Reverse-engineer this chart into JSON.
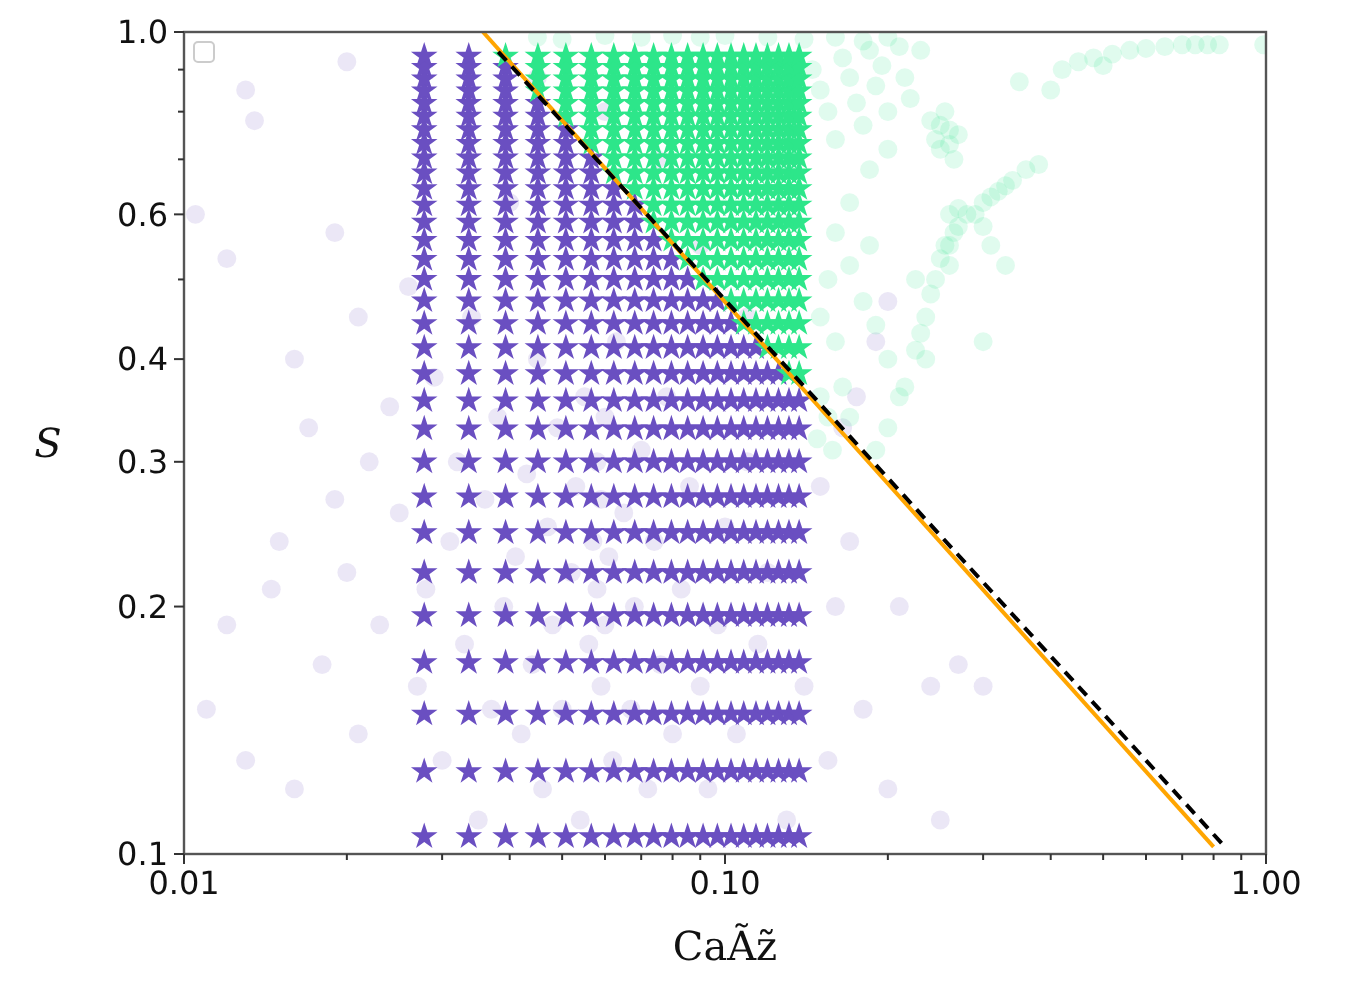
{
  "chart_data": {
    "type": "scatter",
    "xlabel": "CaÃz̃",
    "ylabel": "S",
    "log": "xy",
    "grid": false,
    "xlim": [
      0.01,
      1
    ],
    "ylim": [
      0.1,
      1
    ],
    "xticks": [
      {
        "value": 0.01,
        "label": "0.01"
      },
      {
        "value": 0.02,
        "label": null
      },
      {
        "value": 0.03,
        "label": null
      },
      {
        "value": 0.04,
        "label": null
      },
      {
        "value": 0.05,
        "label": null
      },
      {
        "value": 0.06,
        "label": null
      },
      {
        "value": 0.07,
        "label": null
      },
      {
        "value": 0.08,
        "label": null
      },
      {
        "value": 0.09,
        "label": null
      },
      {
        "value": 0.1,
        "label": "0.10"
      },
      {
        "value": 0.2,
        "label": null
      },
      {
        "value": 0.3,
        "label": null
      },
      {
        "value": 0.4,
        "label": null
      },
      {
        "value": 0.5,
        "label": null
      },
      {
        "value": 0.6,
        "label": null
      },
      {
        "value": 0.7,
        "label": null
      },
      {
        "value": 0.8,
        "label": null
      },
      {
        "value": 0.9,
        "label": null
      },
      {
        "value": 1,
        "label": "1.00"
      }
    ],
    "yticks": [
      {
        "value": 0.1,
        "label": "0.1"
      },
      0.2,
      0.3,
      0.4,
      {
        "value": 0.5,
        "label": null
      },
      0.6,
      {
        "value": 0.7,
        "label": null
      },
      {
        "value": 0.8,
        "label": null
      },
      {
        "value": 0.9,
        "label": null
      },
      {
        "value": 1,
        "label": "1.0"
      }
    ],
    "series": [
      {
        "marker": "circle",
        "color": "#7b5cc4",
        "x": [
          0.0105,
          0.012,
          0.013,
          0.0135,
          0.016,
          0.017,
          0.019,
          0.02,
          0.021,
          0.022,
          0.011,
          0.012,
          0.013,
          0.0145,
          0.015,
          0.016,
          0.018,
          0.019,
          0.02,
          0.021,
          0.023,
          0.024,
          0.025,
          0.026,
          0.027,
          0.028,
          0.029,
          0.03,
          0.031,
          0.032,
          0.033,
          0.034,
          0.035,
          0.036,
          0.037,
          0.038,
          0.039,
          0.04,
          0.041,
          0.042,
          0.043,
          0.044,
          0.045,
          0.046,
          0.047,
          0.048,
          0.049,
          0.05,
          0.052,
          0.053,
          0.054,
          0.055,
          0.056,
          0.057,
          0.058,
          0.058,
          0.059,
          0.059,
          0.06,
          0.06,
          0.061,
          0.062,
          0.063,
          0.065,
          0.067,
          0.068,
          0.07,
          0.072,
          0.074,
          0.076,
          0.078,
          0.08,
          0.083,
          0.086,
          0.09,
          0.093,
          0.097,
          0.1,
          0.105,
          0.11,
          0.115,
          0.12,
          0.13,
          0.14,
          0.15,
          0.155,
          0.16,
          0.17,
          0.18,
          0.2,
          0.21,
          0.24,
          0.25,
          0.27,
          0.3,
          0.165,
          0.175,
          0.2,
          0.19,
          0.11,
          0.09,
          0.075,
          0.06,
          0.045
        ],
        "values": [
          0.6,
          0.53,
          0.85,
          0.78,
          0.4,
          0.33,
          0.57,
          0.92,
          0.45,
          0.3,
          0.15,
          0.19,
          0.13,
          0.21,
          0.24,
          0.12,
          0.17,
          0.27,
          0.22,
          0.14,
          0.19,
          0.35,
          0.26,
          0.49,
          0.16,
          0.21,
          0.38,
          0.13,
          0.24,
          0.3,
          0.18,
          0.45,
          0.11,
          0.27,
          0.15,
          0.34,
          0.2,
          0.62,
          0.23,
          0.14,
          0.29,
          0.17,
          0.4,
          0.12,
          0.25,
          0.19,
          0.33,
          0.15,
          0.22,
          0.28,
          0.11,
          0.36,
          0.18,
          0.24,
          0.3,
          0.21,
          0.27,
          0.16,
          0.19,
          0.34,
          0.23,
          0.13,
          0.42,
          0.26,
          0.15,
          0.2,
          0.31,
          0.12,
          0.24,
          0.17,
          0.36,
          0.14,
          0.21,
          0.28,
          0.16,
          0.12,
          0.19,
          0.25,
          0.14,
          0.3,
          0.18,
          0.22,
          0.11,
          0.16,
          0.28,
          0.13,
          0.2,
          0.24,
          0.15,
          0.12,
          0.2,
          0.16,
          0.11,
          0.17,
          0.16,
          0.33,
          0.36,
          0.47,
          0.42,
          0.45,
          0.55,
          0.7,
          0.8,
          0.88
        ]
      },
      {
        "marker": "circle",
        "color": "#2de68a",
        "x": [
          0.045,
          0.05,
          0.06,
          0.07,
          0.08,
          0.09,
          0.1,
          0.12,
          0.14,
          0.16,
          0.18,
          0.2,
          0.145,
          0.15,
          0.155,
          0.16,
          0.165,
          0.17,
          0.175,
          0.18,
          0.185,
          0.19,
          0.195,
          0.2,
          0.21,
          0.215,
          0.22,
          0.2,
          0.185,
          0.17,
          0.16,
          0.155,
          0.15,
          0.16,
          0.17,
          0.18,
          0.185,
          0.19,
          0.2,
          0.165,
          0.155,
          0.15,
          0.148,
          0.158,
          0.17,
          0.215,
          0.225,
          0.23,
          0.24,
          0.245,
          0.25,
          0.255,
          0.26,
          0.265,
          0.25,
          0.26,
          0.27,
          0.225,
          0.23,
          0.235,
          0.24,
          0.245,
          0.25,
          0.255,
          0.26,
          0.265,
          0.27,
          0.28,
          0.29,
          0.3,
          0.31,
          0.32,
          0.33,
          0.34,
          0.36,
          0.38,
          0.235,
          0.26,
          0.27,
          0.3,
          0.31,
          0.21,
          0.2,
          0.19,
          0.3,
          0.33,
          0.26,
          0.42,
          0.45,
          0.48,
          0.52,
          0.56,
          0.6,
          0.65,
          0.7,
          0.74,
          0.78,
          0.82,
          0.99,
          0.4,
          0.5,
          0.35
        ],
        "values": [
          0.985,
          0.98,
          0.99,
          0.985,
          0.99,
          0.985,
          0.99,
          0.985,
          0.98,
          0.985,
          0.975,
          0.985,
          0.9,
          0.85,
          0.8,
          0.74,
          0.93,
          0.88,
          0.82,
          0.77,
          0.95,
          0.86,
          0.91,
          0.8,
          0.96,
          0.88,
          0.83,
          0.72,
          0.68,
          0.62,
          0.57,
          0.5,
          0.45,
          0.42,
          0.52,
          0.47,
          0.55,
          0.44,
          0.4,
          0.37,
          0.34,
          0.36,
          0.32,
          0.31,
          0.34,
          0.37,
          0.5,
          0.95,
          0.78,
          0.74,
          0.72,
          0.8,
          0.76,
          0.7,
          0.77,
          0.73,
          0.75,
          0.41,
          0.43,
          0.45,
          0.48,
          0.5,
          0.53,
          0.55,
          0.52,
          0.57,
          0.58,
          0.6,
          0.6,
          0.62,
          0.63,
          0.64,
          0.65,
          0.66,
          0.68,
          0.69,
          0.4,
          0.55,
          0.61,
          0.58,
          0.55,
          0.36,
          0.33,
          0.31,
          0.42,
          0.52,
          0.6,
          0.9,
          0.92,
          0.93,
          0.94,
          0.95,
          0.955,
          0.96,
          0.965,
          0.965,
          0.965,
          0.965,
          0.965,
          0.85,
          0.91,
          0.87
        ]
      },
      {
        "marker": "star",
        "color": "#6a4fc1",
        "x": [
          0.0278,
          0.0278,
          0.0278,
          0.0278,
          0.0278,
          0.0278,
          0.0278,
          0.0278,
          0.0278,
          0.0278,
          0.0278,
          0.0278,
          0.0278,
          0.0278,
          0.0278,
          0.0278,
          0.0278,
          0.0278,
          0.0278,
          0.0278,
          0.0278,
          0.0278,
          0.0278,
          0.0278,
          0.0278,
          0.0278,
          0.0278,
          0.0278,
          0.0278,
          0.0278,
          0.0278,
          0.0336,
          0.0336,
          0.0336,
          0.0336,
          0.0336,
          0.0336,
          0.0336,
          0.0336,
          0.0336,
          0.0336,
          0.0336,
          0.0336,
          0.0336,
          0.0336,
          0.0336,
          0.0336,
          0.0336,
          0.0336,
          0.0336,
          0.0336,
          0.0336,
          0.0336,
          0.0336,
          0.0336,
          0.0336,
          0.0336,
          0.0336,
          0.0336,
          0.0336,
          0.0336,
          0.0336,
          0.0393,
          0.0393,
          0.0393,
          0.0393,
          0.0393,
          0.0393,
          0.0393,
          0.0393,
          0.0393,
          0.0393,
          0.0393,
          0.0393,
          0.0393,
          0.0393,
          0.0393,
          0.0393,
          0.0393,
          0.0393,
          0.0393,
          0.0393,
          0.0393,
          0.0393,
          0.0393,
          0.0393,
          0.0393,
          0.0393,
          0.0393,
          0.0393,
          0.0393,
          0.0393,
          0.0451,
          0.0451,
          0.0451,
          0.0451,
          0.0451,
          0.0451,
          0.0451,
          0.0451,
          0.0451,
          0.0451,
          0.0451,
          0.0451,
          0.0451,
          0.0451,
          0.0451,
          0.0451,
          0.0451,
          0.0451,
          0.0451,
          0.0451,
          0.0451,
          0.0451,
          0.0451,
          0.0451,
          0.0451,
          0.0451,
          0.0451,
          0.0508,
          0.0508,
          0.0508,
          0.0508,
          0.0508,
          0.0508,
          0.0508,
          0.0508,
          0.0508,
          0.0508,
          0.0508,
          0.0508,
          0.0508,
          0.0508,
          0.0508,
          0.0508,
          0.0508,
          0.0508,
          0.0508,
          0.0508,
          0.0508,
          0.0508,
          0.0508,
          0.0508,
          0.0508,
          0.0566,
          0.0566,
          0.0566,
          0.0566,
          0.0566,
          0.0566,
          0.0566,
          0.0566,
          0.0566,
          0.0566,
          0.0566,
          0.0566,
          0.0566,
          0.0566,
          0.0566,
          0.0566,
          0.0566,
          0.0566,
          0.0566,
          0.0566,
          0.0566,
          0.0566,
          0.0566,
          0.0623,
          0.0623,
          0.0623,
          0.0623,
          0.0623,
          0.0623,
          0.0623,
          0.0623,
          0.0623,
          0.0623,
          0.0623,
          0.0623,
          0.0623,
          0.0623,
          0.0623,
          0.0623,
          0.0623,
          0.0623,
          0.0623,
          0.0623,
          0.0623,
          0.0681,
          0.0681,
          0.0681,
          0.0681,
          0.0681,
          0.0681,
          0.0681,
          0.0681,
          0.0681,
          0.0681,
          0.0681,
          0.0681,
          0.0681,
          0.0681,
          0.0681,
          0.0681,
          0.0681,
          0.0681,
          0.0681,
          0.0681,
          0.0738,
          0.0738,
          0.0738,
          0.0738,
          0.0738,
          0.0738,
          0.0738,
          0.0738,
          0.0738,
          0.0738,
          0.0738,
          0.0738,
          0.0738,
          0.0738,
          0.0738,
          0.0738,
          0.0738,
          0.0738,
          0.0796,
          0.0796,
          0.0796,
          0.0796,
          0.0796,
          0.0796,
          0.0796,
          0.0796,
          0.0796,
          0.0796,
          0.0796,
          0.0796,
          0.0796,
          0.0796,
          0.0796,
          0.0796,
          0.0796,
          0.0853,
          0.0853,
          0.0853,
          0.0853,
          0.0853,
          0.0853,
          0.0853,
          0.0853,
          0.0853,
          0.0853,
          0.0853,
          0.0853,
          0.0853,
          0.0853,
          0.0853,
          0.0853,
          0.0911,
          0.0911,
          0.0911,
          0.0911,
          0.0911,
          0.0911,
          0.0911,
          0.0911,
          0.0911,
          0.0911,
          0.0911,
          0.0911,
          0.0911,
          0.0911,
          0.0911,
          0.0968,
          0.0968,
          0.0968,
          0.0968,
          0.0968,
          0.0968,
          0.0968,
          0.0968,
          0.0968,
          0.0968,
          0.0968,
          0.0968,
          0.0968,
          0.0968,
          0.0968,
          0.1026,
          0.1026,
          0.1026,
          0.1026,
          0.1026,
          0.1026,
          0.1026,
          0.1026,
          0.1026,
          0.1026,
          0.1026,
          0.1026,
          0.1026,
          0.1026,
          0.1083,
          0.1083,
          0.1083,
          0.1083,
          0.1083,
          0.1083,
          0.1083,
          0.1083,
          0.1083,
          0.1083,
          0.1083,
          0.1083,
          0.1083,
          0.1141,
          0.1141,
          0.1141,
          0.1141,
          0.1141,
          0.1141,
          0.1141,
          0.1141,
          0.1141,
          0.1141,
          0.1141,
          0.1141,
          0.1141,
          0.1198,
          0.1198,
          0.1198,
          0.1198,
          0.1198,
          0.1198,
          0.1198,
          0.1198,
          0.1198,
          0.1198,
          0.1198,
          0.1198,
          0.1256,
          0.1256,
          0.1256,
          0.1256,
          0.1256,
          0.1256,
          0.1256,
          0.1256,
          0.1256,
          0.1256,
          0.1256,
          0.1256,
          0.1313,
          0.1313,
          0.1313,
          0.1313,
          0.1313,
          0.1313,
          0.1313,
          0.1313,
          0.1313,
          0.1313,
          0.1313,
          0.1371,
          0.1371,
          0.1371,
          0.1371,
          0.1371,
          0.1371,
          0.1371,
          0.1371,
          0.1371,
          0.1371,
          0.1371
        ],
        "values": [
          0.105,
          0.126,
          0.148,
          0.171,
          0.195,
          0.22,
          0.246,
          0.272,
          0.3,
          0.329,
          0.356,
          0.384,
          0.413,
          0.442,
          0.471,
          0.5,
          0.529,
          0.558,
          0.587,
          0.616,
          0.645,
          0.674,
          0.703,
          0.732,
          0.761,
          0.79,
          0.819,
          0.848,
          0.877,
          0.906,
          0.935,
          0.105,
          0.126,
          0.148,
          0.171,
          0.195,
          0.22,
          0.246,
          0.272,
          0.3,
          0.329,
          0.356,
          0.384,
          0.413,
          0.442,
          0.471,
          0.5,
          0.529,
          0.558,
          0.587,
          0.616,
          0.645,
          0.674,
          0.703,
          0.732,
          0.761,
          0.79,
          0.819,
          0.848,
          0.877,
          0.906,
          0.935,
          0.105,
          0.126,
          0.148,
          0.171,
          0.195,
          0.22,
          0.246,
          0.272,
          0.3,
          0.329,
          0.356,
          0.384,
          0.413,
          0.442,
          0.471,
          0.5,
          0.529,
          0.558,
          0.587,
          0.616,
          0.645,
          0.674,
          0.703,
          0.732,
          0.761,
          0.79,
          0.819,
          0.848,
          0.877,
          0.906,
          0.105,
          0.126,
          0.148,
          0.171,
          0.195,
          0.22,
          0.246,
          0.272,
          0.3,
          0.329,
          0.356,
          0.384,
          0.413,
          0.442,
          0.471,
          0.5,
          0.529,
          0.558,
          0.587,
          0.616,
          0.645,
          0.674,
          0.703,
          0.732,
          0.761,
          0.79,
          0.819,
          0.105,
          0.126,
          0.148,
          0.171,
          0.195,
          0.22,
          0.246,
          0.272,
          0.3,
          0.329,
          0.356,
          0.384,
          0.413,
          0.442,
          0.471,
          0.5,
          0.529,
          0.558,
          0.587,
          0.616,
          0.645,
          0.674,
          0.703,
          0.732,
          0.761,
          0.105,
          0.126,
          0.148,
          0.171,
          0.195,
          0.22,
          0.246,
          0.272,
          0.3,
          0.329,
          0.356,
          0.384,
          0.413,
          0.442,
          0.471,
          0.5,
          0.529,
          0.558,
          0.587,
          0.616,
          0.645,
          0.674,
          0.703,
          0.105,
          0.126,
          0.148,
          0.171,
          0.195,
          0.22,
          0.246,
          0.272,
          0.3,
          0.329,
          0.356,
          0.384,
          0.413,
          0.442,
          0.471,
          0.5,
          0.529,
          0.558,
          0.587,
          0.616,
          0.645,
          0.105,
          0.126,
          0.148,
          0.171,
          0.195,
          0.22,
          0.246,
          0.272,
          0.3,
          0.329,
          0.356,
          0.384,
          0.413,
          0.442,
          0.471,
          0.5,
          0.529,
          0.558,
          0.587,
          0.616,
          0.105,
          0.126,
          0.148,
          0.171,
          0.195,
          0.22,
          0.246,
          0.272,
          0.3,
          0.329,
          0.356,
          0.384,
          0.413,
          0.442,
          0.471,
          0.5,
          0.529,
          0.558,
          0.105,
          0.126,
          0.148,
          0.171,
          0.195,
          0.22,
          0.246,
          0.272,
          0.3,
          0.329,
          0.356,
          0.384,
          0.413,
          0.442,
          0.471,
          0.5,
          0.529,
          0.105,
          0.126,
          0.148,
          0.171,
          0.195,
          0.22,
          0.246,
          0.272,
          0.3,
          0.329,
          0.356,
          0.384,
          0.413,
          0.442,
          0.471,
          0.5,
          0.105,
          0.126,
          0.148,
          0.171,
          0.195,
          0.22,
          0.246,
          0.272,
          0.3,
          0.329,
          0.356,
          0.384,
          0.413,
          0.442,
          0.471,
          0.105,
          0.126,
          0.148,
          0.171,
          0.195,
          0.22,
          0.246,
          0.272,
          0.3,
          0.329,
          0.356,
          0.384,
          0.413,
          0.442,
          0.471,
          0.105,
          0.126,
          0.148,
          0.171,
          0.195,
          0.22,
          0.246,
          0.272,
          0.3,
          0.329,
          0.356,
          0.384,
          0.413,
          0.442,
          0.105,
          0.126,
          0.148,
          0.171,
          0.195,
          0.22,
          0.246,
          0.272,
          0.3,
          0.329,
          0.356,
          0.384,
          0.413,
          0.105,
          0.126,
          0.148,
          0.171,
          0.195,
          0.22,
          0.246,
          0.272,
          0.3,
          0.329,
          0.356,
          0.384,
          0.413,
          0.105,
          0.126,
          0.148,
          0.171,
          0.195,
          0.22,
          0.246,
          0.272,
          0.3,
          0.329,
          0.356,
          0.384,
          0.105,
          0.126,
          0.148,
          0.171,
          0.195,
          0.22,
          0.246,
          0.272,
          0.3,
          0.329,
          0.356,
          0.384,
          0.105,
          0.126,
          0.148,
          0.171,
          0.195,
          0.22,
          0.246,
          0.272,
          0.3,
          0.329,
          0.356,
          0.105,
          0.126,
          0.148,
          0.171,
          0.195,
          0.22,
          0.246,
          0.272,
          0.3,
          0.329,
          0.356
        ]
      },
      {
        "marker": "star",
        "color": "#2de68a",
        "x": [
          0.0393,
          0.0451,
          0.0451,
          0.0451,
          0.0451,
          0.0508,
          0.0508,
          0.0508,
          0.0508,
          0.0508,
          0.0508,
          0.0566,
          0.0566,
          0.0566,
          0.0566,
          0.0566,
          0.0566,
          0.0566,
          0.0566,
          0.0623,
          0.0623,
          0.0623,
          0.0623,
          0.0623,
          0.0623,
          0.0623,
          0.0623,
          0.0623,
          0.0623,
          0.0681,
          0.0681,
          0.0681,
          0.0681,
          0.0681,
          0.0681,
          0.0681,
          0.0681,
          0.0681,
          0.0681,
          0.0681,
          0.0738,
          0.0738,
          0.0738,
          0.0738,
          0.0738,
          0.0738,
          0.0738,
          0.0738,
          0.0738,
          0.0738,
          0.0738,
          0.0738,
          0.0738,
          0.0796,
          0.0796,
          0.0796,
          0.0796,
          0.0796,
          0.0796,
          0.0796,
          0.0796,
          0.0796,
          0.0796,
          0.0796,
          0.0796,
          0.0796,
          0.0796,
          0.0853,
          0.0853,
          0.0853,
          0.0853,
          0.0853,
          0.0853,
          0.0853,
          0.0853,
          0.0853,
          0.0853,
          0.0853,
          0.0853,
          0.0853,
          0.0853,
          0.0853,
          0.0911,
          0.0911,
          0.0911,
          0.0911,
          0.0911,
          0.0911,
          0.0911,
          0.0911,
          0.0911,
          0.0911,
          0.0911,
          0.0911,
          0.0911,
          0.0911,
          0.0911,
          0.0911,
          0.0968,
          0.0968,
          0.0968,
          0.0968,
          0.0968,
          0.0968,
          0.0968,
          0.0968,
          0.0968,
          0.0968,
          0.0968,
          0.0968,
          0.0968,
          0.0968,
          0.0968,
          0.0968,
          0.1026,
          0.1026,
          0.1026,
          0.1026,
          0.1026,
          0.1026,
          0.1026,
          0.1026,
          0.1026,
          0.1026,
          0.1026,
          0.1026,
          0.1026,
          0.1026,
          0.1026,
          0.1026,
          0.1026,
          0.1083,
          0.1083,
          0.1083,
          0.1083,
          0.1083,
          0.1083,
          0.1083,
          0.1083,
          0.1083,
          0.1083,
          0.1083,
          0.1083,
          0.1083,
          0.1083,
          0.1083,
          0.1083,
          0.1083,
          0.1083,
          0.1141,
          0.1141,
          0.1141,
          0.1141,
          0.1141,
          0.1141,
          0.1141,
          0.1141,
          0.1141,
          0.1141,
          0.1141,
          0.1141,
          0.1141,
          0.1141,
          0.1141,
          0.1141,
          0.1141,
          0.1141,
          0.1198,
          0.1198,
          0.1198,
          0.1198,
          0.1198,
          0.1198,
          0.1198,
          0.1198,
          0.1198,
          0.1198,
          0.1198,
          0.1198,
          0.1198,
          0.1198,
          0.1198,
          0.1198,
          0.1198,
          0.1198,
          0.1198,
          0.1256,
          0.1256,
          0.1256,
          0.1256,
          0.1256,
          0.1256,
          0.1256,
          0.1256,
          0.1256,
          0.1256,
          0.1256,
          0.1256,
          0.1256,
          0.1256,
          0.1256,
          0.1256,
          0.1256,
          0.1256,
          0.1256,
          0.1313,
          0.1313,
          0.1313,
          0.1313,
          0.1313,
          0.1313,
          0.1313,
          0.1313,
          0.1313,
          0.1313,
          0.1313,
          0.1313,
          0.1313,
          0.1313,
          0.1313,
          0.1313,
          0.1313,
          0.1313,
          0.1313,
          0.1313,
          0.1371,
          0.1371,
          0.1371,
          0.1371,
          0.1371,
          0.1371,
          0.1371,
          0.1371,
          0.1371,
          0.1371,
          0.1371,
          0.1371,
          0.1371,
          0.1371,
          0.1371,
          0.1371,
          0.1371,
          0.1371,
          0.1371,
          0.1371
        ],
        "values": [
          0.935,
          0.848,
          0.877,
          0.906,
          0.935,
          0.79,
          0.819,
          0.848,
          0.877,
          0.906,
          0.935,
          0.732,
          0.761,
          0.79,
          0.819,
          0.848,
          0.877,
          0.906,
          0.935,
          0.674,
          0.703,
          0.732,
          0.761,
          0.79,
          0.819,
          0.848,
          0.877,
          0.906,
          0.935,
          0.645,
          0.674,
          0.703,
          0.732,
          0.761,
          0.79,
          0.819,
          0.848,
          0.877,
          0.906,
          0.935,
          0.587,
          0.616,
          0.645,
          0.674,
          0.703,
          0.732,
          0.761,
          0.79,
          0.819,
          0.848,
          0.877,
          0.906,
          0.935,
          0.558,
          0.587,
          0.616,
          0.645,
          0.674,
          0.703,
          0.732,
          0.761,
          0.79,
          0.819,
          0.848,
          0.877,
          0.906,
          0.935,
          0.529,
          0.558,
          0.587,
          0.616,
          0.645,
          0.674,
          0.703,
          0.732,
          0.761,
          0.79,
          0.819,
          0.848,
          0.877,
          0.906,
          0.935,
          0.5,
          0.529,
          0.558,
          0.587,
          0.616,
          0.645,
          0.674,
          0.703,
          0.732,
          0.761,
          0.79,
          0.819,
          0.848,
          0.877,
          0.906,
          0.935,
          0.5,
          0.529,
          0.558,
          0.587,
          0.616,
          0.645,
          0.674,
          0.703,
          0.732,
          0.761,
          0.79,
          0.819,
          0.848,
          0.877,
          0.906,
          0.935,
          0.471,
          0.5,
          0.529,
          0.558,
          0.587,
          0.616,
          0.645,
          0.674,
          0.703,
          0.732,
          0.761,
          0.79,
          0.819,
          0.848,
          0.877,
          0.906,
          0.935,
          0.442,
          0.471,
          0.5,
          0.529,
          0.558,
          0.587,
          0.616,
          0.645,
          0.674,
          0.703,
          0.732,
          0.761,
          0.79,
          0.819,
          0.848,
          0.877,
          0.906,
          0.935,
          0.442,
          0.471,
          0.5,
          0.529,
          0.558,
          0.587,
          0.616,
          0.645,
          0.674,
          0.703,
          0.732,
          0.761,
          0.79,
          0.819,
          0.848,
          0.877,
          0.906,
          0.935,
          0.413,
          0.442,
          0.471,
          0.5,
          0.529,
          0.558,
          0.587,
          0.616,
          0.645,
          0.674,
          0.703,
          0.732,
          0.761,
          0.79,
          0.819,
          0.848,
          0.877,
          0.906,
          0.935,
          0.413,
          0.442,
          0.471,
          0.5,
          0.529,
          0.558,
          0.587,
          0.616,
          0.645,
          0.674,
          0.703,
          0.732,
          0.761,
          0.79,
          0.819,
          0.848,
          0.877,
          0.906,
          0.935,
          0.384,
          0.413,
          0.442,
          0.471,
          0.5,
          0.529,
          0.558,
          0.587,
          0.616,
          0.645,
          0.674,
          0.703,
          0.732,
          0.761,
          0.79,
          0.819,
          0.848,
          0.877,
          0.906,
          0.935,
          0.384,
          0.413,
          0.442,
          0.471,
          0.5,
          0.529,
          0.558,
          0.587,
          0.616,
          0.645,
          0.674,
          0.703,
          0.732,
          0.761,
          0.79,
          0.819,
          0.848,
          0.877,
          0.906,
          0.935
        ]
      },
      {
        "type": "line",
        "color": "#ffa500",
        "line_style": "solid",
        "x": [
          0.0357,
          0.8
        ],
        "values": [
          1.0,
          0.102
        ]
      },
      {
        "type": "line",
        "color": "#000000",
        "line_style": "dashed",
        "x": [
          0.0381,
          0.84
        ],
        "values": [
          0.946,
          0.102
        ]
      }
    ]
  }
}
